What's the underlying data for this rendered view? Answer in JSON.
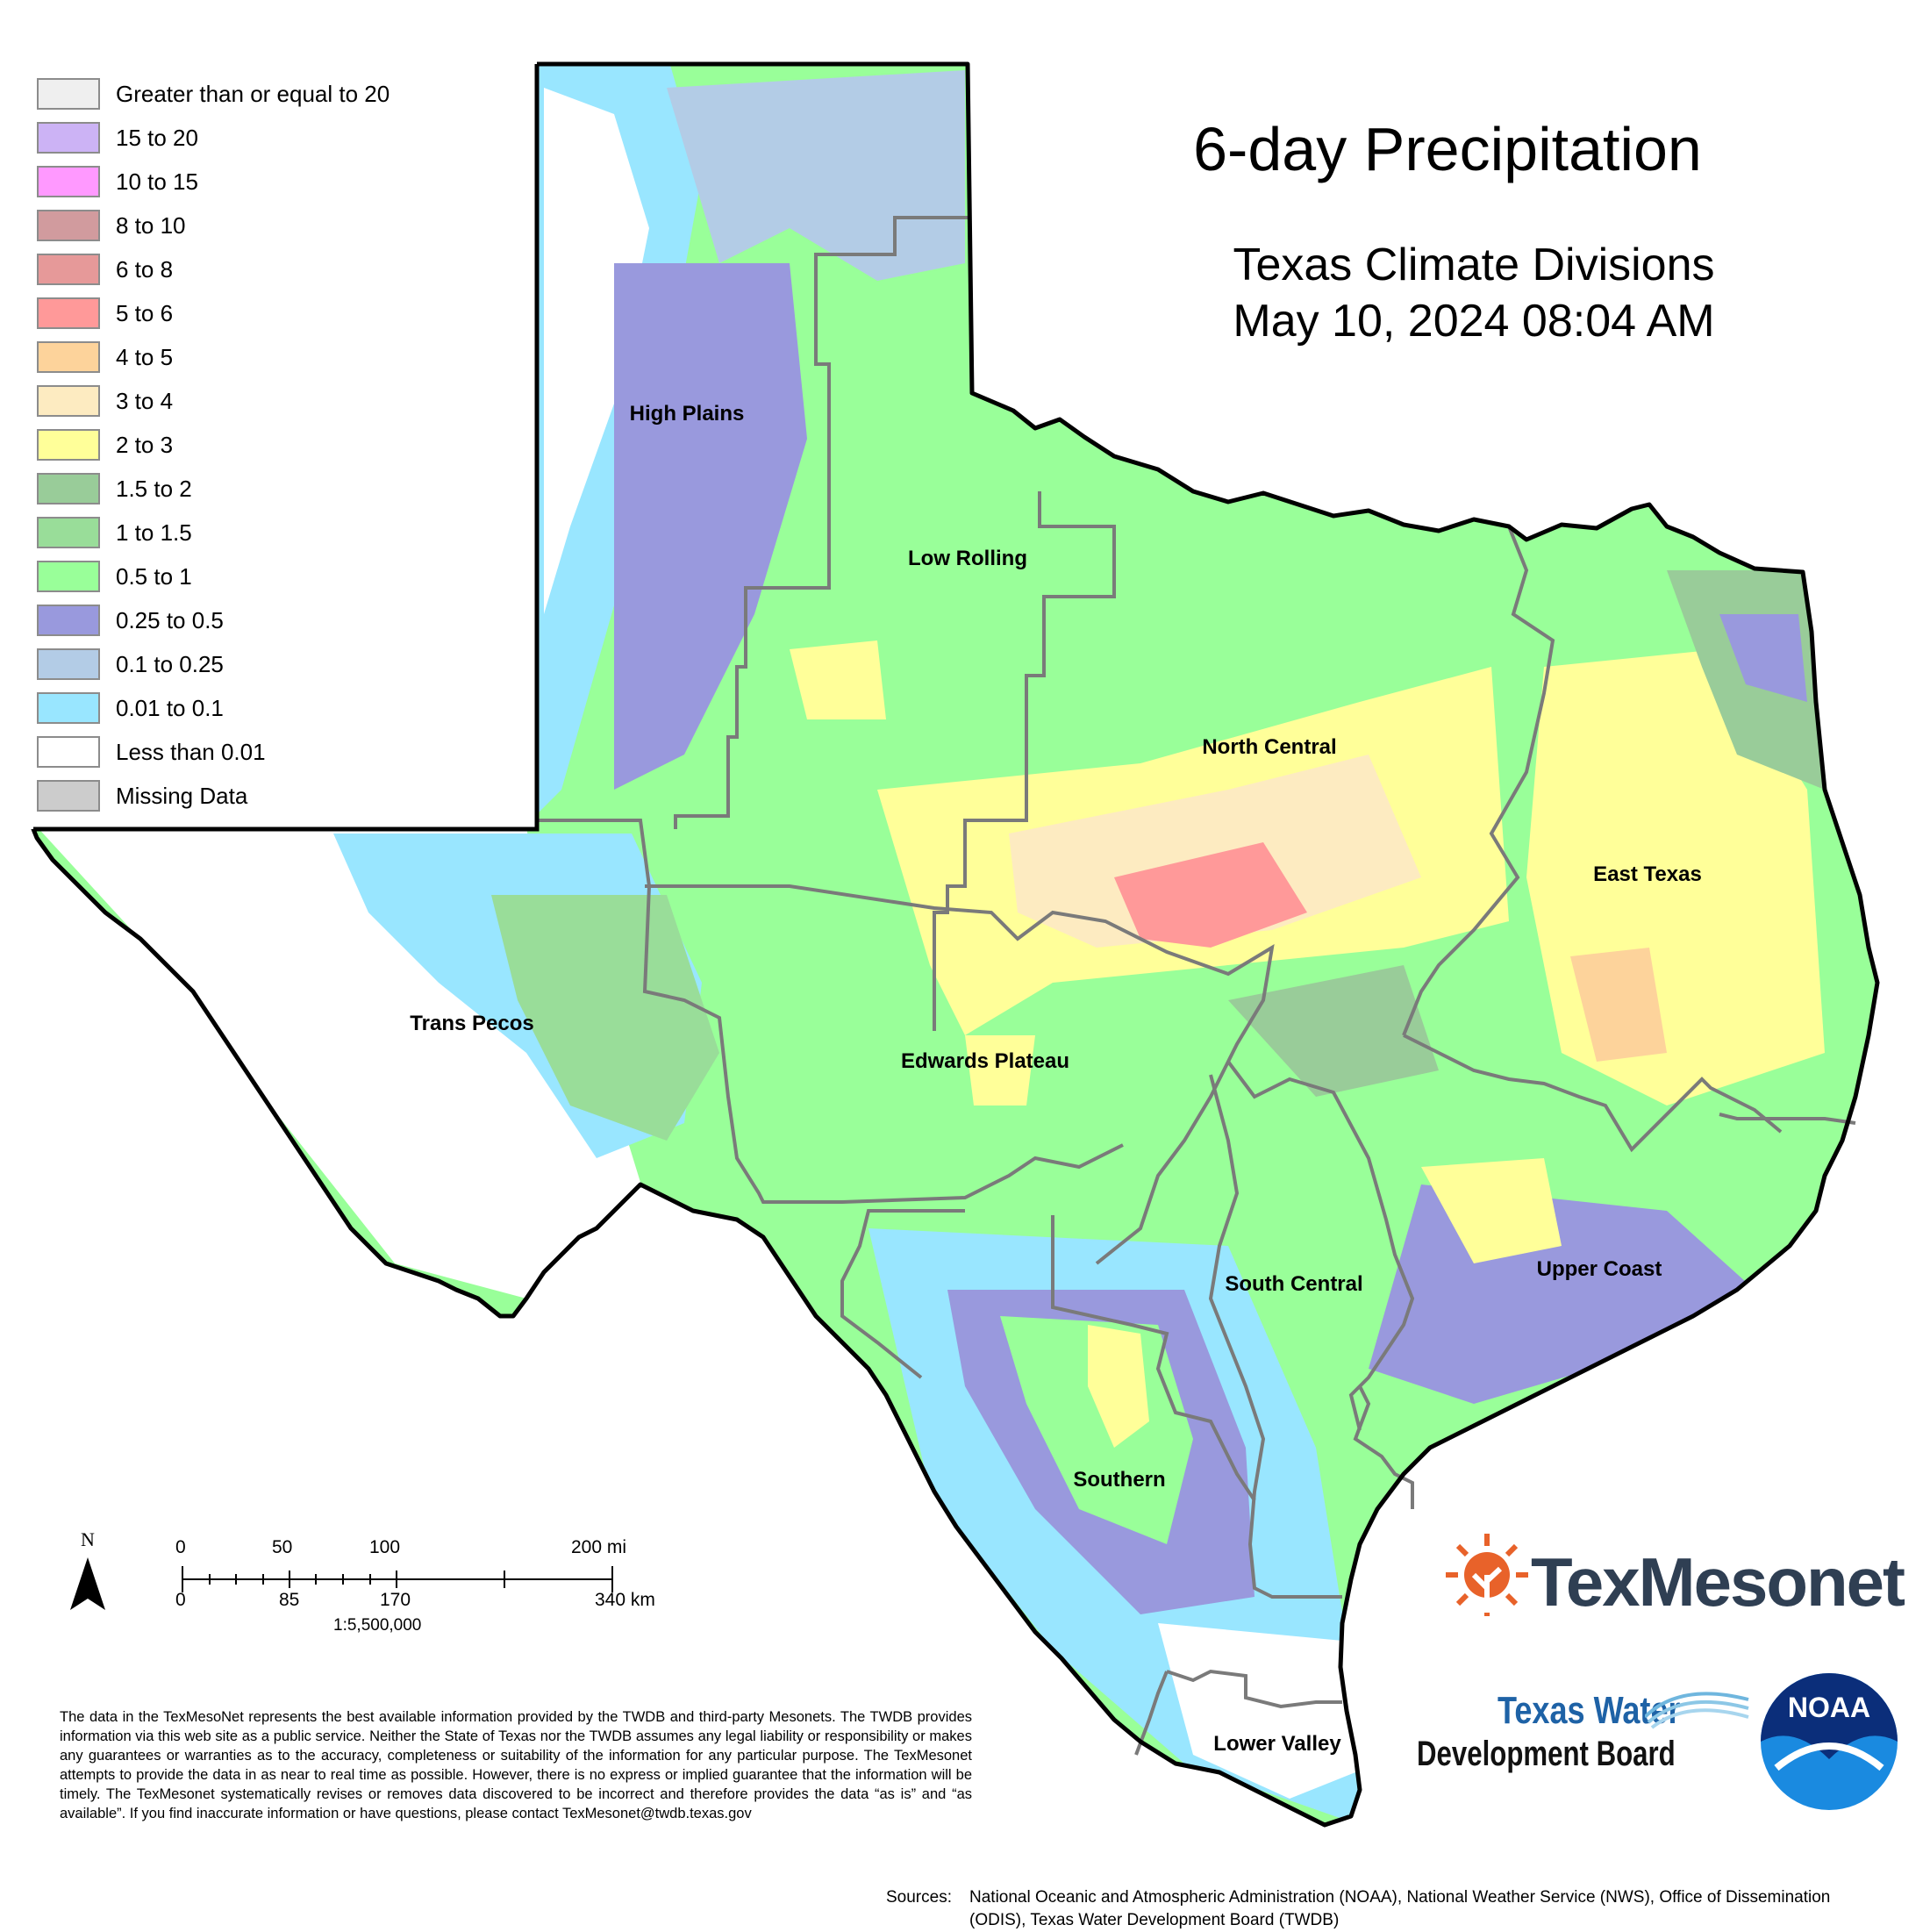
{
  "title": "6-day Precipitation",
  "subtitle_line1": "Texas Climate Divisions",
  "subtitle_line2": "May 10, 2024 08:04 AM",
  "legend": [
    {
      "label": "Greater than or equal to 20",
      "color": "#efefef"
    },
    {
      "label": "15 to 20",
      "color": "#ccb3f5"
    },
    {
      "label": "10 to 15",
      "color": "#ff99ff"
    },
    {
      "label": "8 to 10",
      "color": "#d19b9e"
    },
    {
      "label": "6 to 8",
      "color": "#e69999"
    },
    {
      "label": "5 to 6",
      "color": "#ff9999"
    },
    {
      "label": "4 to 5",
      "color": "#fdd39b"
    },
    {
      "label": "3 to 4",
      "color": "#fdebc1"
    },
    {
      "label": "2 to 3",
      "color": "#ffff99"
    },
    {
      "label": "1.5 to 2",
      "color": "#99cc99"
    },
    {
      "label": "1 to 1.5",
      "color": "#99dd99"
    },
    {
      "label": "0.5 to 1",
      "color": "#99ff99"
    },
    {
      "label": "0.25 to 0.5",
      "color": "#9999dd"
    },
    {
      "label": "0.1 to 0.25",
      "color": "#b3cce6"
    },
    {
      "label": "0.01 to 0.1",
      "color": "#99e6ff"
    },
    {
      "label": "Less than 0.01",
      "color": "#ffffff"
    },
    {
      "label": "Missing Data",
      "color": "#cccccc"
    }
  ],
  "divisions": {
    "high_plains": "High Plains",
    "low_rolling": "Low Rolling",
    "north_central": "North Central",
    "east_texas": "East Texas",
    "trans_pecos": "Trans Pecos",
    "edwards_plateau": "Edwards Plateau",
    "south_central": "South Central",
    "upper_coast": "Upper Coast",
    "southern": "Southern",
    "lower_valley": "Lower Valley"
  },
  "north_letter": "N",
  "scale": {
    "mi_0": "0",
    "mi_50": "50",
    "mi_100": "100",
    "mi_200": "200 mi",
    "km_0": "0",
    "km_85": "85",
    "km_170": "170",
    "km_340": "340 km",
    "ratio": "1:5,500,000"
  },
  "disclaimer": "The data in the TexMesoNet represents the best available information provided by the TWDB and third-party Mesonets. The TWDB provides information via this web site as a public service. Neither the State of Texas nor the TWDB assumes any legal liability or responsibility or makes any guarantees or warranties as to the accuracy, completeness or suitability of the information for any particular purpose. The TexMesonet attempts to provide the data in as near to real time as possible. However, there is no express or implied guarantee that the information will be timely. The TexMesonet systematically revises or removes data discovered to be incorrect and therefore provides the data “as is” and “as available”. If you find inaccurate information or have questions, please contact TexMesonet@twdb.texas.gov",
  "sources_label": "Sources:",
  "sources_text": "National Oceanic and Atmospheric Administration (NOAA), National Weather Service (NWS), Office of Dissemination (ODIS), Texas Water Development Board (TWDB)",
  "logos": {
    "texmesonet": "TexMesonet",
    "twdb_line1": "Texas Water",
    "twdb_line2": "Development Board",
    "noaa": "NOAA"
  }
}
